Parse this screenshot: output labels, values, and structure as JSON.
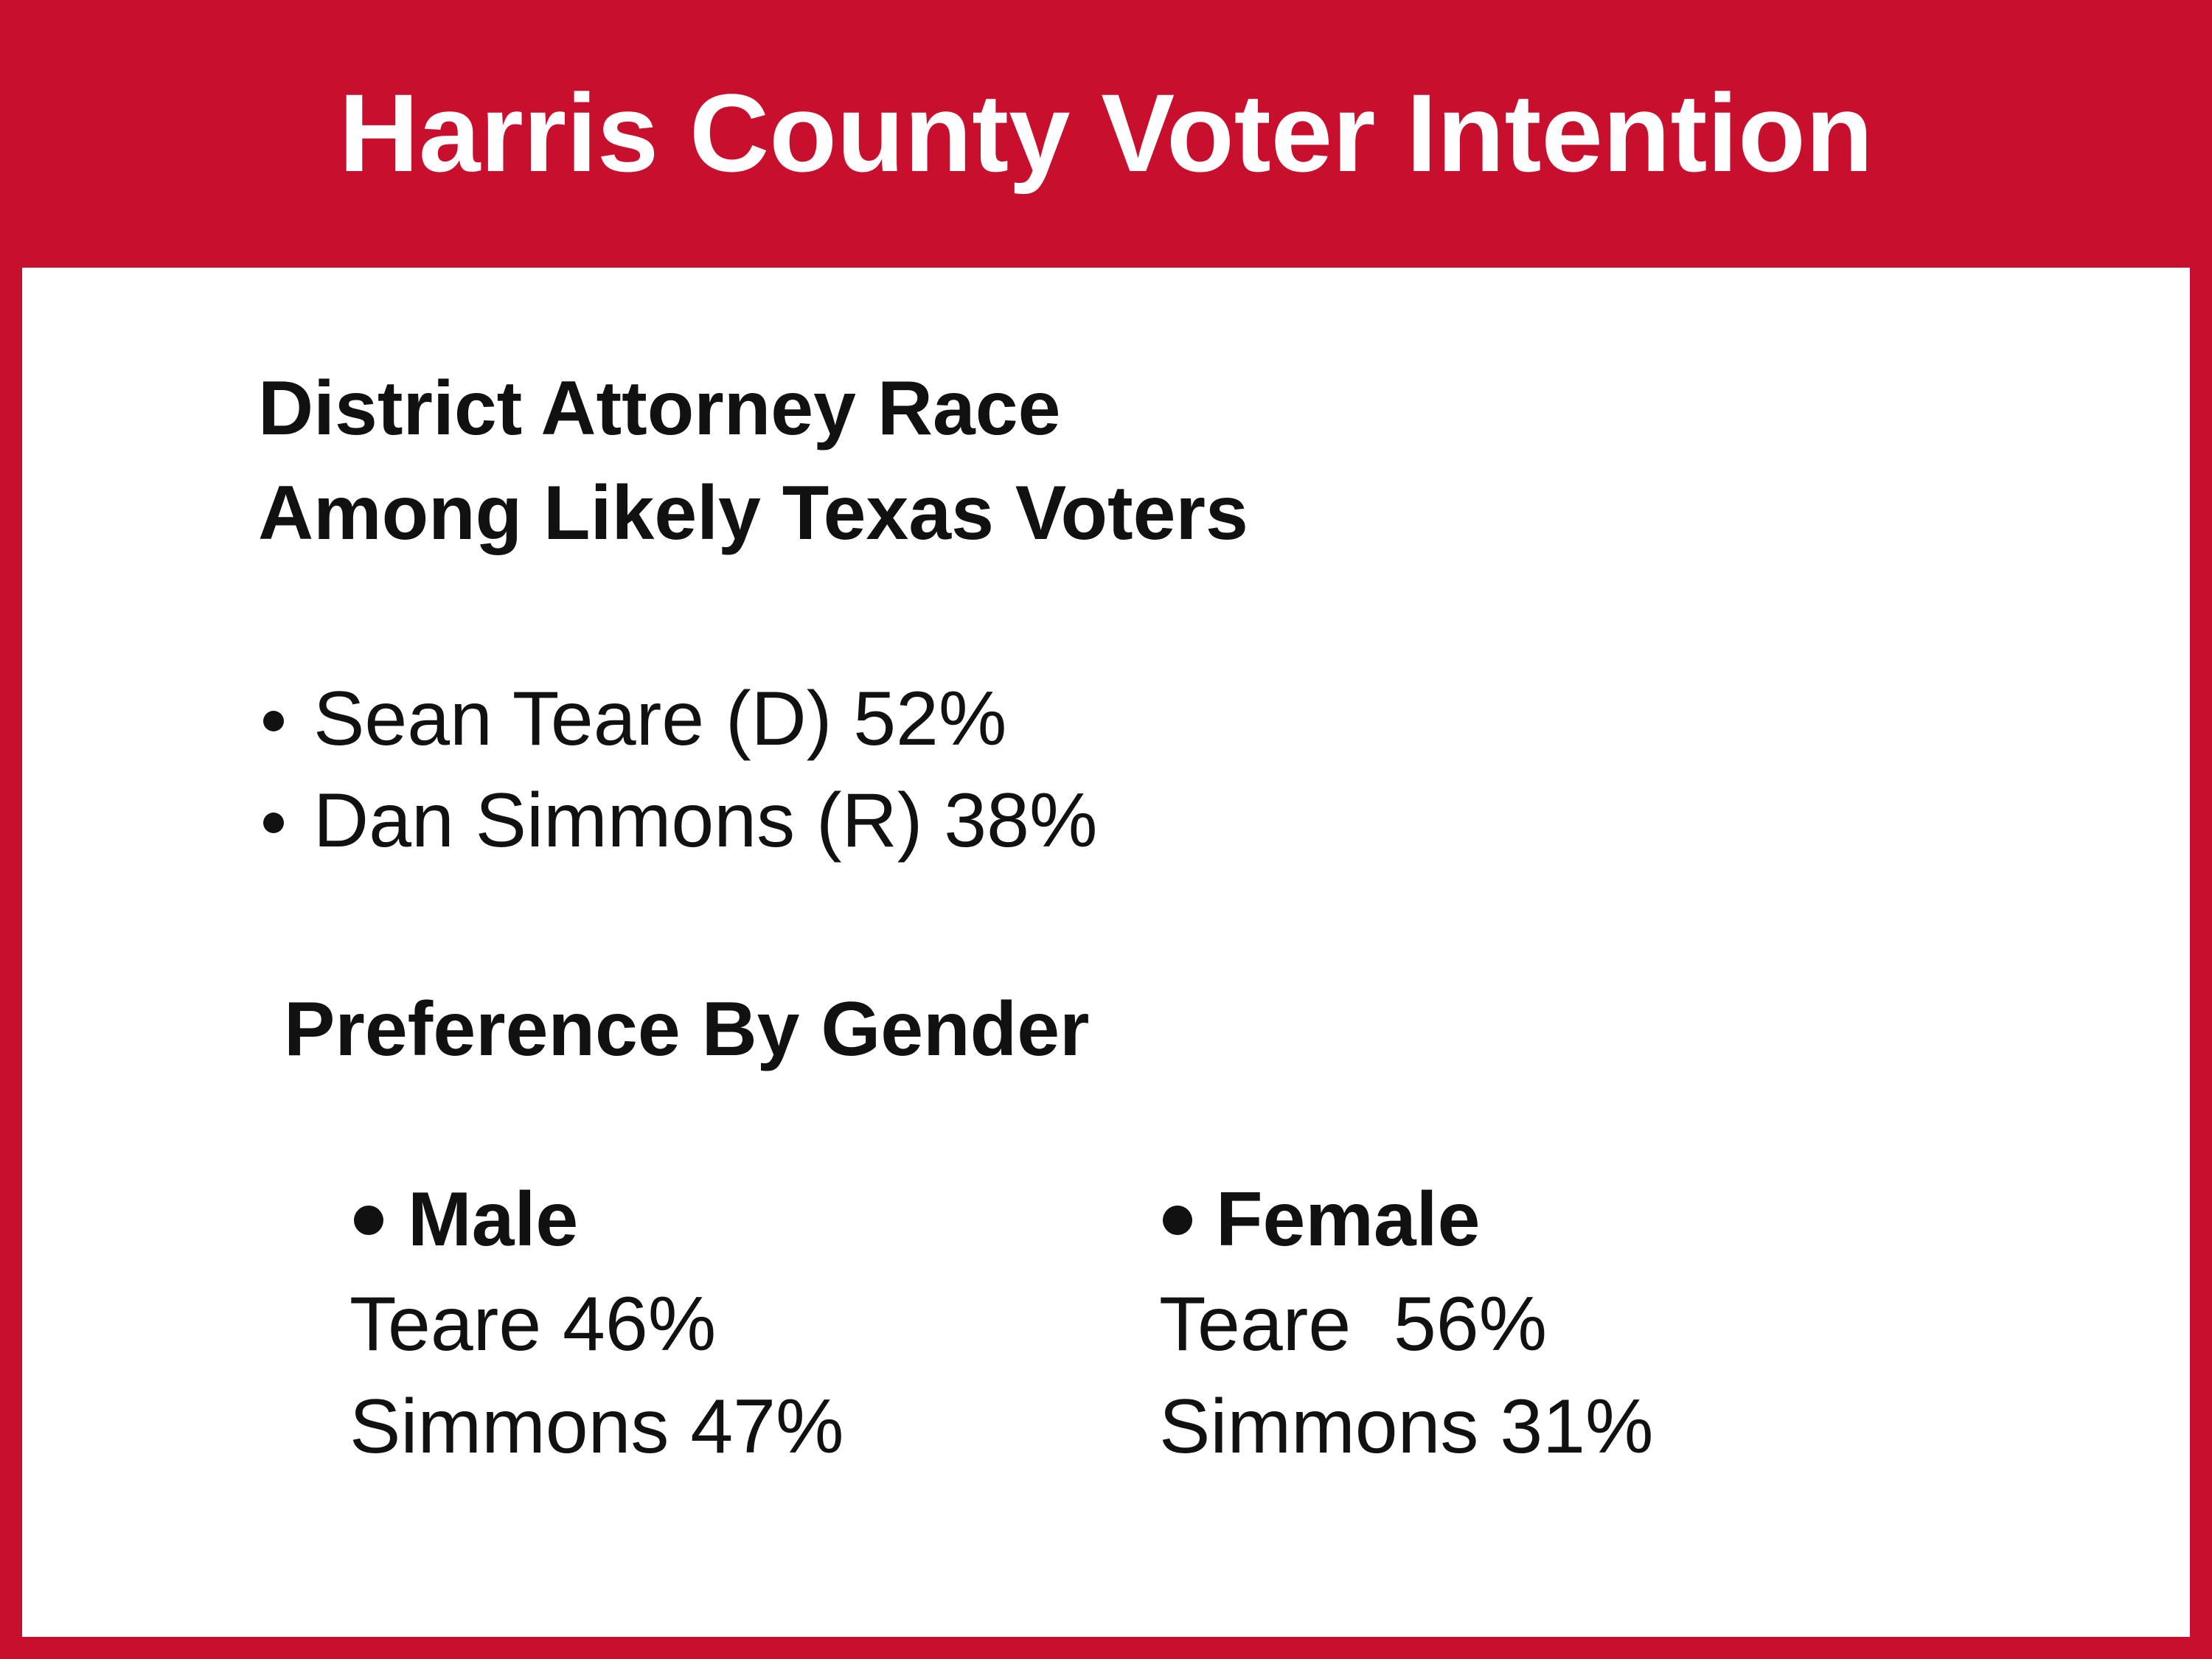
{
  "header": {
    "title": "Harris County Voter Intention"
  },
  "race": {
    "heading": [
      "District Attorney Race",
      "Among Likely Texas Voters"
    ],
    "results": [
      "Sean Teare (D) 52%",
      "Dan Simmons (R) 38%"
    ]
  },
  "gender": {
    "heading": "Preference By Gender",
    "groups": [
      {
        "label": "Male",
        "lines": [
          "Teare 46%",
          "Simmons 47%"
        ]
      },
      {
        "label": "Female",
        "lines": [
          "Teare  56%",
          "Simmons 31%"
        ]
      }
    ]
  }
}
